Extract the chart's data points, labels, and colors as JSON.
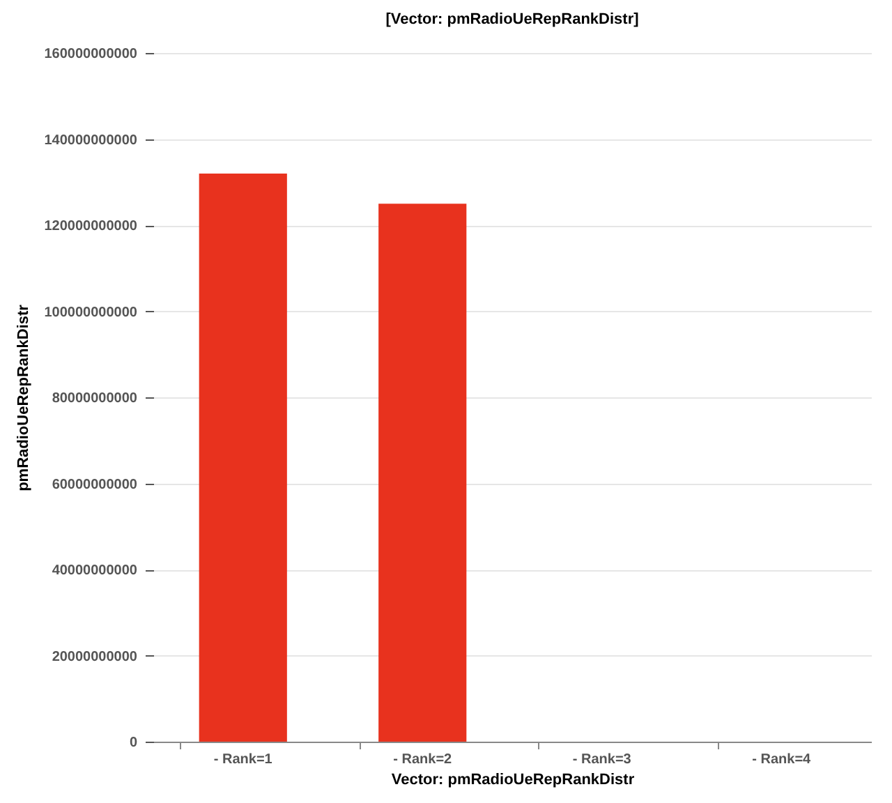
{
  "chart_data": {
    "type": "bar",
    "title": "[Vector: pmRadioUeRepRankDistr]",
    "xlabel": "Vector: pmRadioUeRepRankDistr",
    "ylabel": "pmRadioUeRepRankDistr",
    "categories": [
      "- Rank=1",
      "- Rank=2",
      "- Rank=3",
      "- Rank=4"
    ],
    "values": [
      132000000000,
      125000000000,
      0,
      0
    ],
    "color": "#e8321e",
    "ylim": [
      0,
      160000000000
    ],
    "yticks": [
      0,
      20000000000,
      40000000000,
      60000000000,
      80000000000,
      100000000000,
      120000000000,
      140000000000,
      160000000000
    ],
    "grid": "y"
  }
}
